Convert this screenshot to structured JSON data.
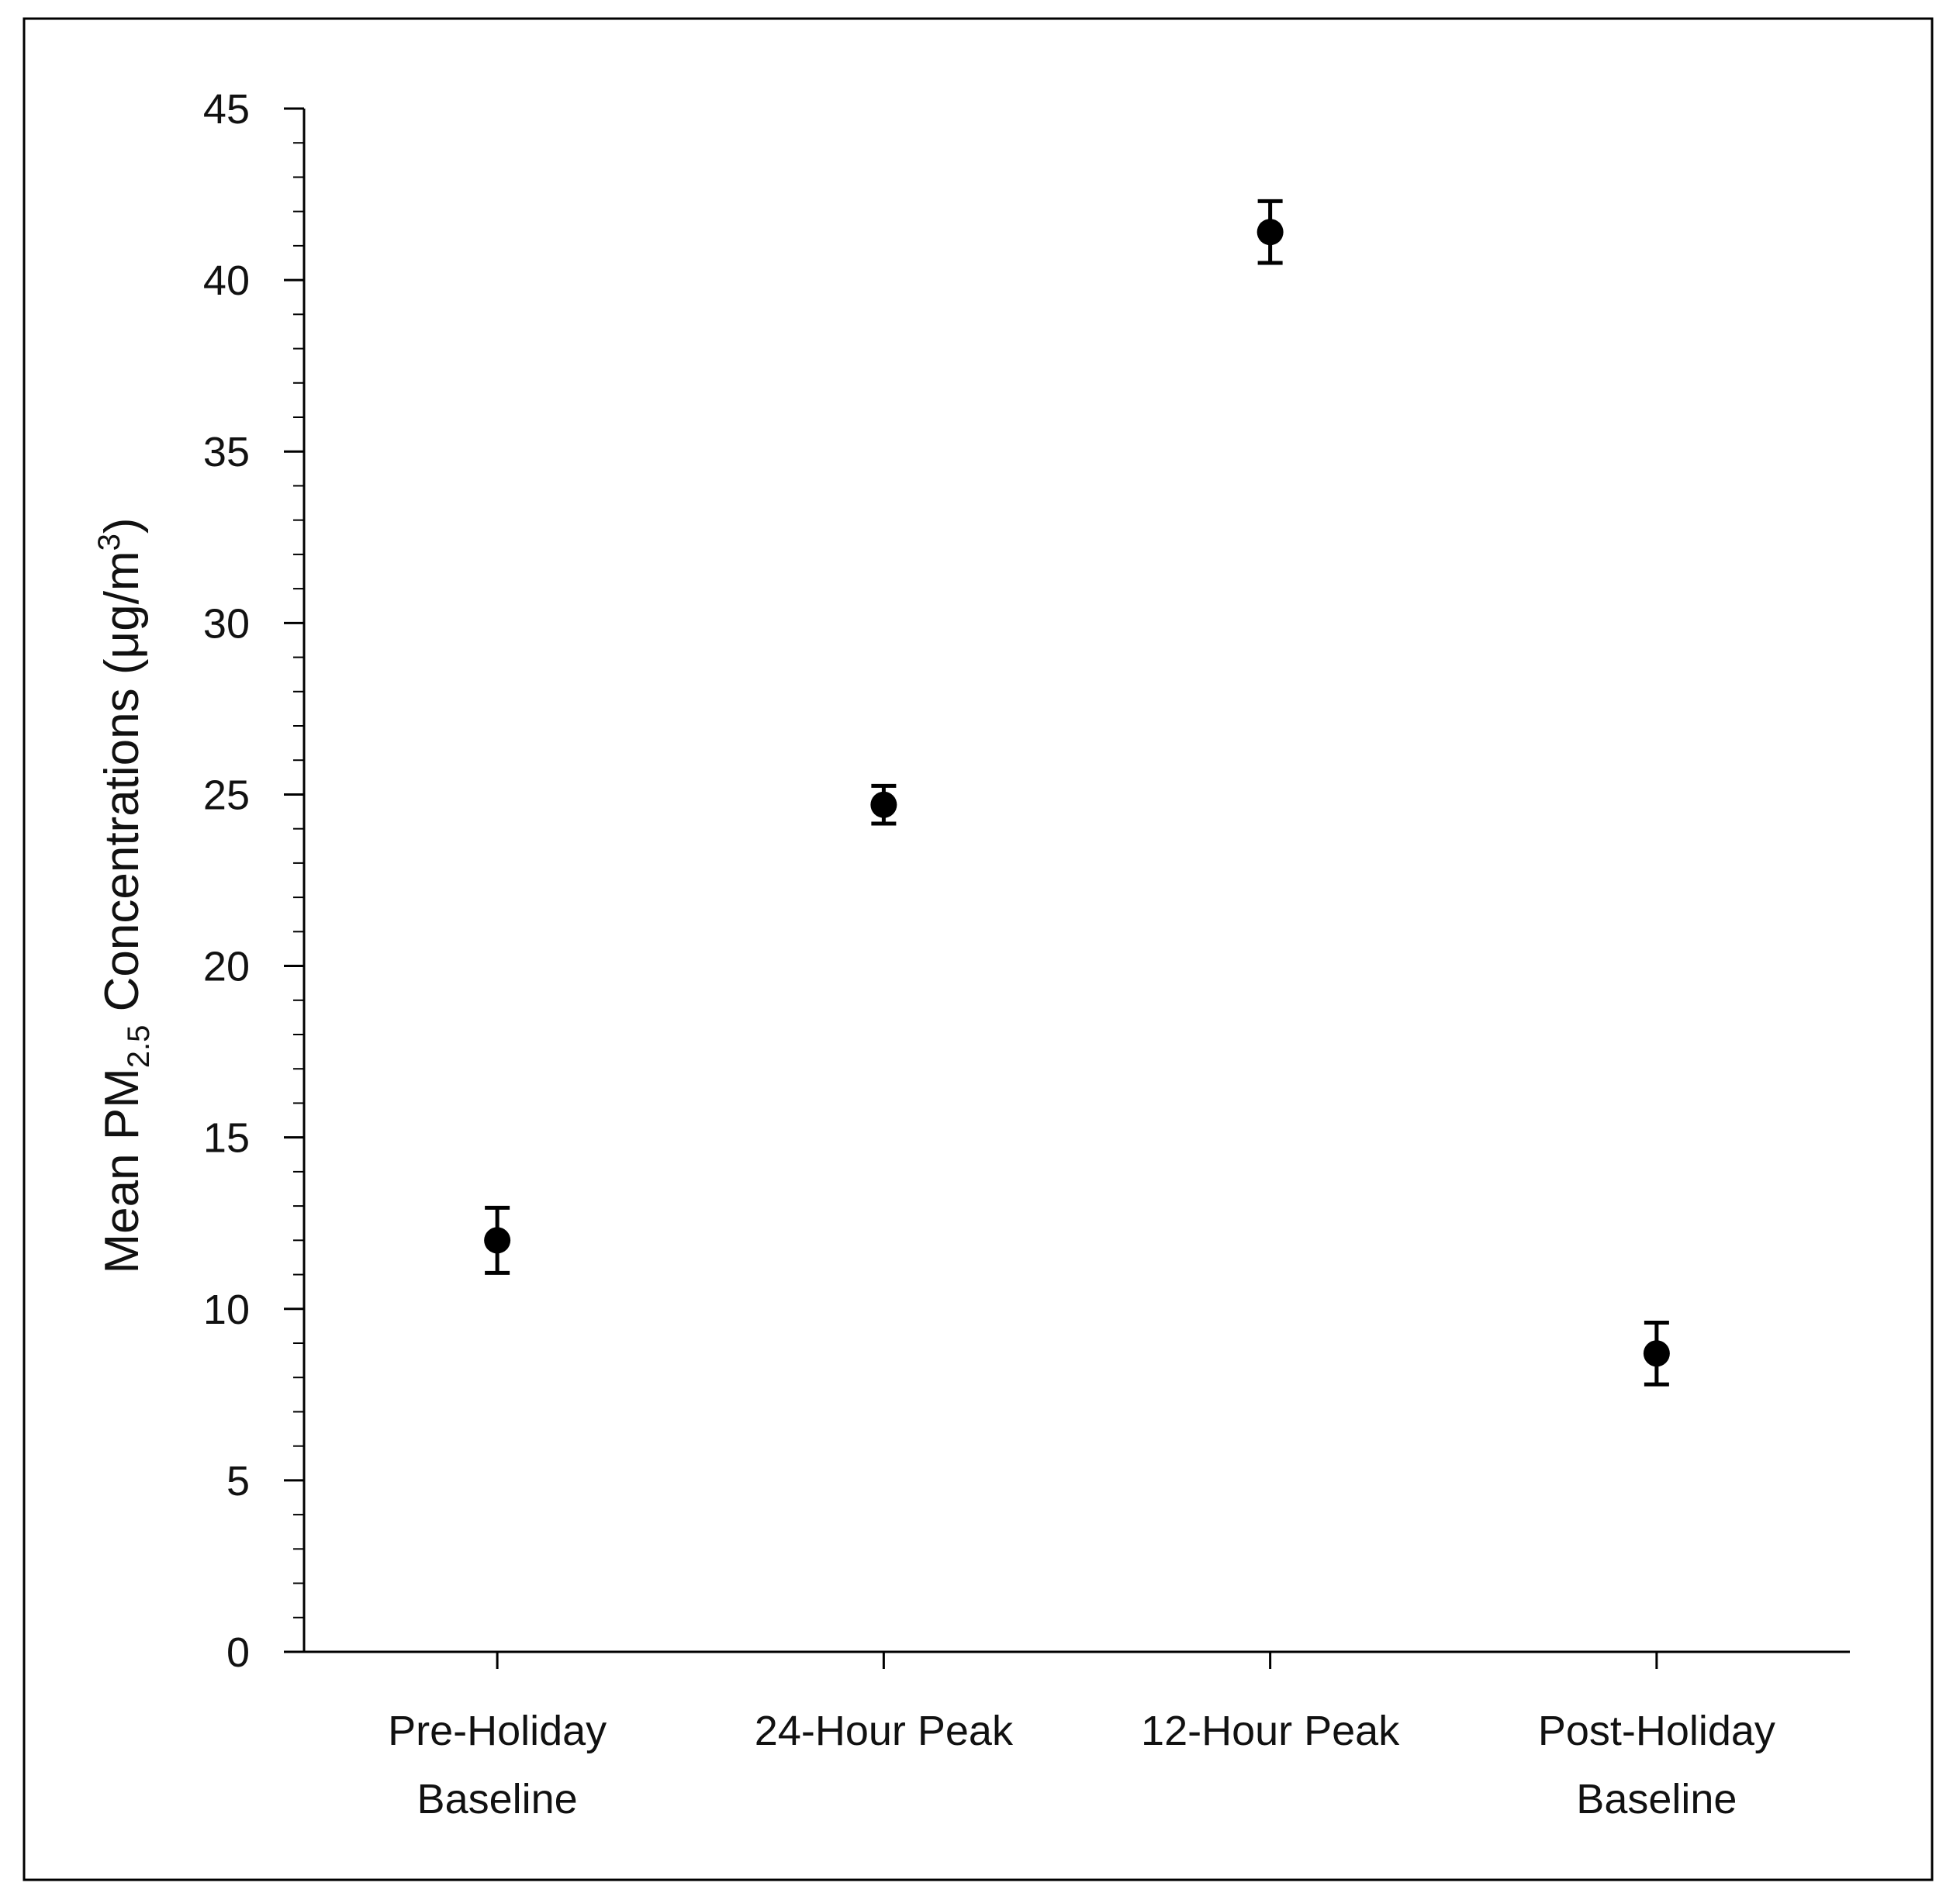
{
  "chart_data": {
    "type": "scatter",
    "title": "",
    "xlabel": "",
    "ylabel": {
      "prefix": "Mean PM",
      "subscript": "2.5",
      "middle": " Concentrations (μg/m",
      "superscript": "3",
      "suffix": ")"
    },
    "categories": [
      [
        "Pre-Holiday",
        "Baseline"
      ],
      [
        "24-Hour Peak"
      ],
      [
        "12-Hour Peak"
      ],
      [
        "Post-Holiday",
        "Baseline"
      ]
    ],
    "values": [
      12.0,
      24.7,
      41.4,
      8.7
    ],
    "errors": [
      0.95,
      0.55,
      0.9,
      0.9
    ],
    "ylim": [
      0,
      45
    ],
    "yticks": [
      0,
      5,
      10,
      15,
      20,
      25,
      30,
      35,
      40,
      45
    ],
    "minor_tick_step": 1,
    "grid": false,
    "legend": "none",
    "colors": {
      "marker": "#000000",
      "axis": "#000000",
      "frame": "#000000"
    }
  }
}
